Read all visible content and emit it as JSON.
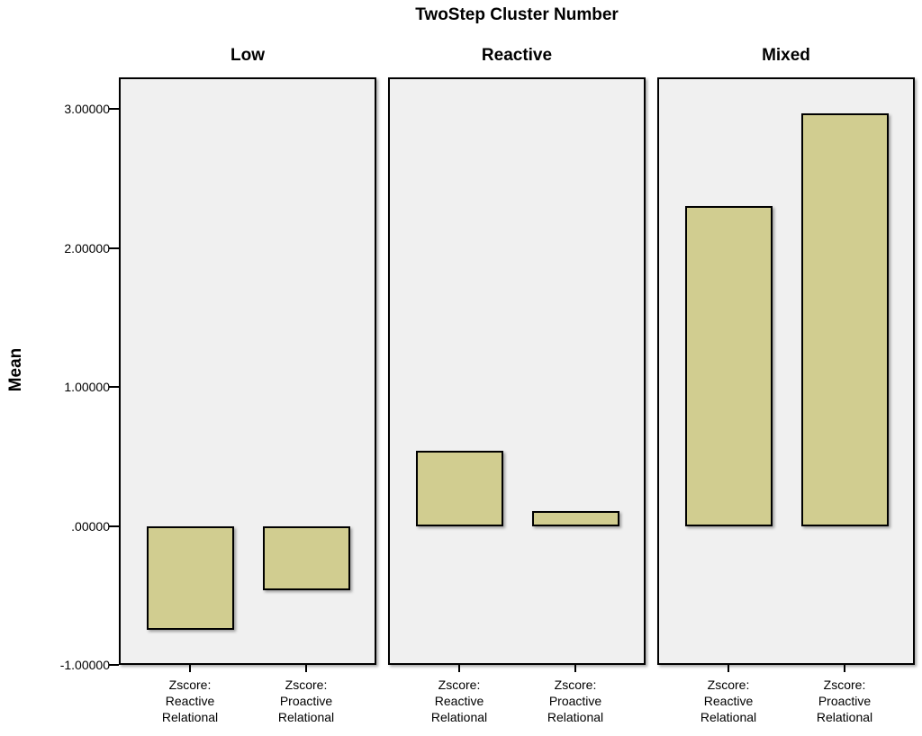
{
  "figure": {
    "title": "TwoStep Cluster Number",
    "ylabel": "Mean"
  },
  "chart_data": {
    "type": "bar",
    "title": "TwoStep Cluster Number",
    "xlabel": "",
    "ylabel": "Mean",
    "panels": [
      "Low",
      "Reactive",
      "Mixed"
    ],
    "categories": [
      "Zscore: Reactive Relational",
      "Zscore: Proactive Relational"
    ],
    "category_label_lines": [
      [
        "Zscore:",
        "Reactive",
        "Relational"
      ],
      [
        "Zscore:",
        "Proactive",
        "Relational"
      ]
    ],
    "series": [
      {
        "name": "Low",
        "values": [
          -0.75,
          -0.46
        ]
      },
      {
        "name": "Reactive",
        "values": [
          0.54,
          0.11
        ]
      },
      {
        "name": "Mixed",
        "values": [
          2.3,
          2.97
        ]
      }
    ],
    "yticks": [
      3.0,
      2.0,
      1.0,
      0.0,
      -1.0
    ],
    "ytick_labels": [
      "3.00000",
      "2.00000",
      "1.00000",
      ".00000",
      "-1.00000"
    ],
    "ylim": [
      -1.0,
      3.227
    ],
    "grid": false,
    "legend": false,
    "colors": {
      "bar_fill": "#d1cd90",
      "bar_border": "#000000",
      "panel_background": "#f0f0f0",
      "panel_border": "#000000",
      "text": "#000000",
      "page_background": "#ffffff"
    }
  }
}
